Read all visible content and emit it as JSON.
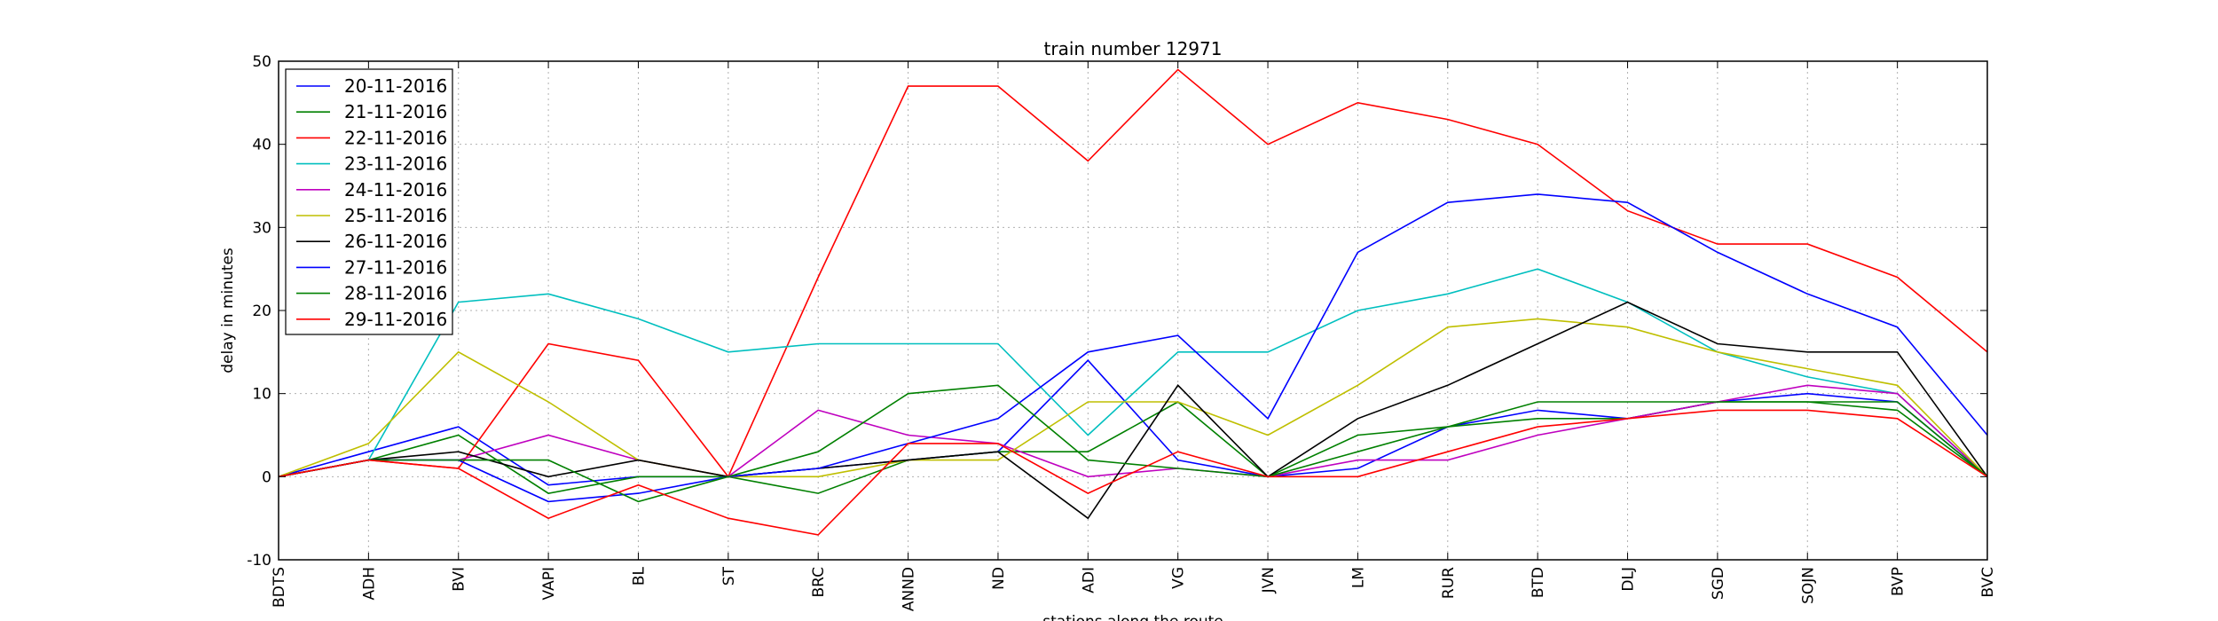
{
  "chart_data": {
    "type": "line",
    "title": "train number 12971",
    "xlabel": "stations along the route",
    "ylabel": "delay in minutes",
    "ylim": [
      -10,
      50
    ],
    "yticks": [
      -10,
      0,
      10,
      20,
      30,
      40,
      50
    ],
    "grid": true,
    "legend_position": "top-left",
    "categories": [
      "BDTS",
      "ADH",
      "BVI",
      "VAPI",
      "BL",
      "ST",
      "BRC",
      "ANND",
      "ND",
      "ADI",
      "VG",
      "JVN",
      "LM",
      "RUR",
      "BTD",
      "DLJ",
      "SGD",
      "SOJN",
      "BVP",
      "BVC"
    ],
    "series": [
      {
        "name": "20-11-2016",
        "color": "#0000ff",
        "values": [
          0,
          3,
          6,
          -1,
          0,
          0,
          1,
          2,
          3,
          14,
          2,
          0,
          1,
          6,
          8,
          7,
          9,
          10,
          9,
          0
        ]
      },
      {
        "name": "21-11-2016",
        "color": "#008000",
        "values": [
          0,
          2,
          5,
          -2,
          0,
          0,
          -2,
          2,
          3,
          3,
          9,
          0,
          5,
          6,
          7,
          7,
          9,
          9,
          8,
          0
        ]
      },
      {
        "name": "22-11-2016",
        "color": "#ff0000",
        "values": [
          0,
          2,
          1,
          16,
          14,
          0,
          24,
          47,
          47,
          38,
          49,
          40,
          45,
          43,
          40,
          32,
          28,
          28,
          24,
          15
        ]
      },
      {
        "name": "23-11-2016",
        "color": "#00bfbf",
        "values": [
          0,
          2,
          21,
          22,
          19,
          15,
          16,
          16,
          16,
          5,
          15,
          15,
          20,
          22,
          25,
          21,
          15,
          12,
          10,
          0
        ]
      },
      {
        "name": "24-11-2016",
        "color": "#bf00bf",
        "values": [
          0,
          2,
          2,
          5,
          2,
          0,
          8,
          5,
          4,
          0,
          1,
          0,
          2,
          2,
          5,
          7,
          9,
          11,
          10,
          0
        ]
      },
      {
        "name": "25-11-2016",
        "color": "#bfbf00",
        "values": [
          0,
          4,
          15,
          9,
          2,
          0,
          0,
          2,
          2,
          9,
          9,
          5,
          11,
          18,
          19,
          18,
          15,
          13,
          11,
          0
        ]
      },
      {
        "name": "26-11-2016",
        "color": "#000000",
        "values": [
          0,
          2,
          3,
          0,
          2,
          0,
          1,
          2,
          3,
          -5,
          11,
          0,
          7,
          11,
          16,
          21,
          16,
          15,
          15,
          0
        ]
      },
      {
        "name": "27-11-2016",
        "color": "#0000ff",
        "values": [
          0,
          2,
          2,
          -3,
          -2,
          0,
          1,
          4,
          7,
          15,
          17,
          7,
          27,
          33,
          34,
          33,
          27,
          22,
          18,
          5
        ]
      },
      {
        "name": "28-11-2016",
        "color": "#008000",
        "values": [
          0,
          2,
          2,
          2,
          -3,
          0,
          3,
          10,
          11,
          2,
          1,
          0,
          3,
          6,
          9,
          9,
          9,
          9,
          9,
          0
        ]
      },
      {
        "name": "29-11-2016",
        "color": "#ff0000",
        "values": [
          0,
          2,
          1,
          -5,
          -1,
          -5,
          -7,
          4,
          4,
          -2,
          3,
          0,
          0,
          3,
          6,
          7,
          8,
          8,
          7,
          0
        ]
      }
    ]
  }
}
